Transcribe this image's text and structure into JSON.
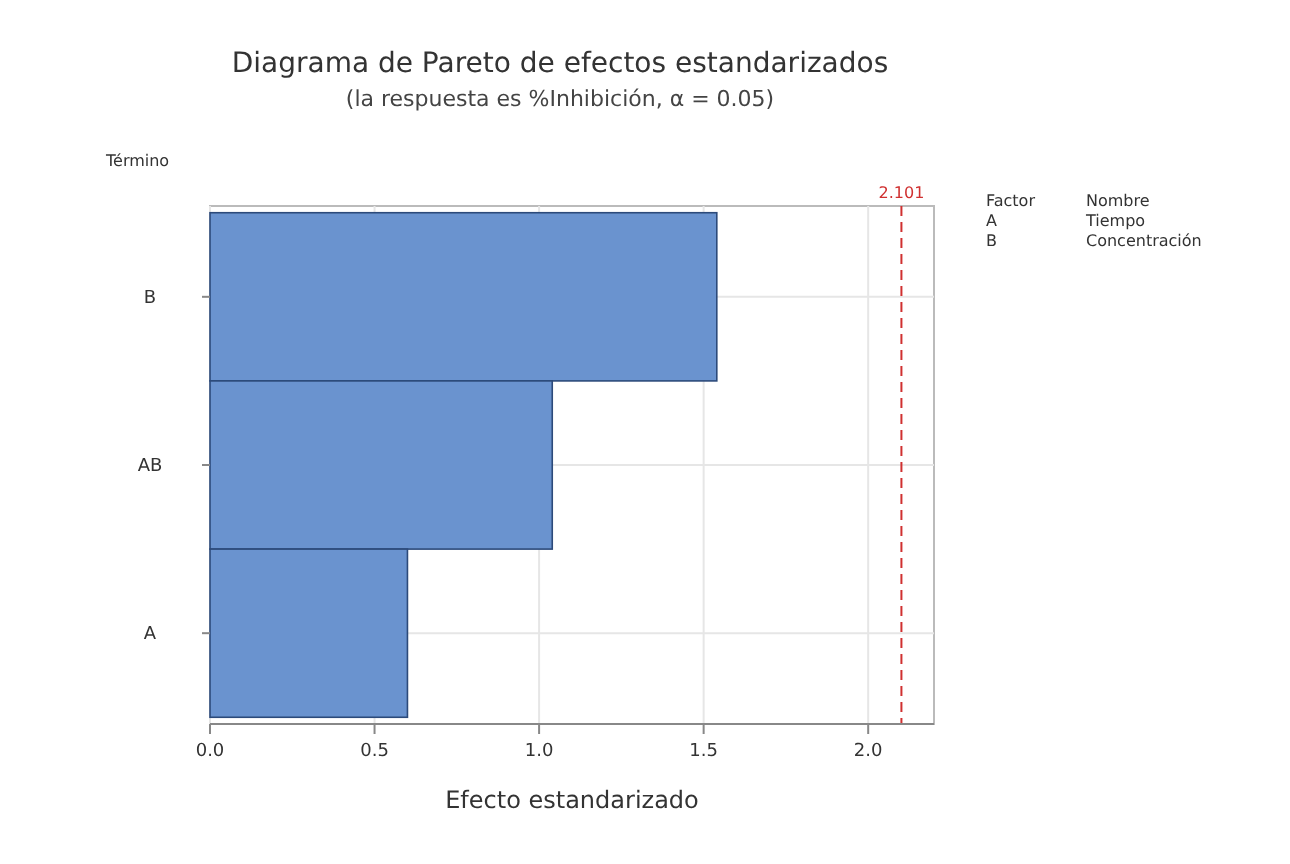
{
  "chart_data": {
    "type": "bar",
    "orientation": "horizontal",
    "title": "Diagrama de Pareto de efectos estandarizados",
    "subtitle": "(la respuesta es %Inhibición, α = 0.05)",
    "xlabel": "Efecto estandarizado",
    "ylabel": "Término",
    "categories": [
      "B",
      "AB",
      "A"
    ],
    "values": [
      1.54,
      1.04,
      0.6
    ],
    "color": "#6a93cf",
    "xlim": [
      0,
      2.2
    ],
    "xticks": [
      {
        "value": 0,
        "label": "0.0"
      },
      {
        "value": 0.5,
        "label": "0.5"
      },
      {
        "value": 1,
        "label": "1.0"
      },
      {
        "value": 1.5,
        "label": "1.5"
      },
      {
        "value": 2,
        "label": "2.0"
      }
    ],
    "grid": true,
    "ref_lines": [
      {
        "axis": "x",
        "value": 2.101,
        "label": "2.101",
        "color": "#d03030",
        "line_style": "dashed"
      }
    ],
    "annotations": [
      "Factor",
      "Nombre",
      "A",
      "Tiempo",
      "B",
      "Concentración"
    ]
  }
}
